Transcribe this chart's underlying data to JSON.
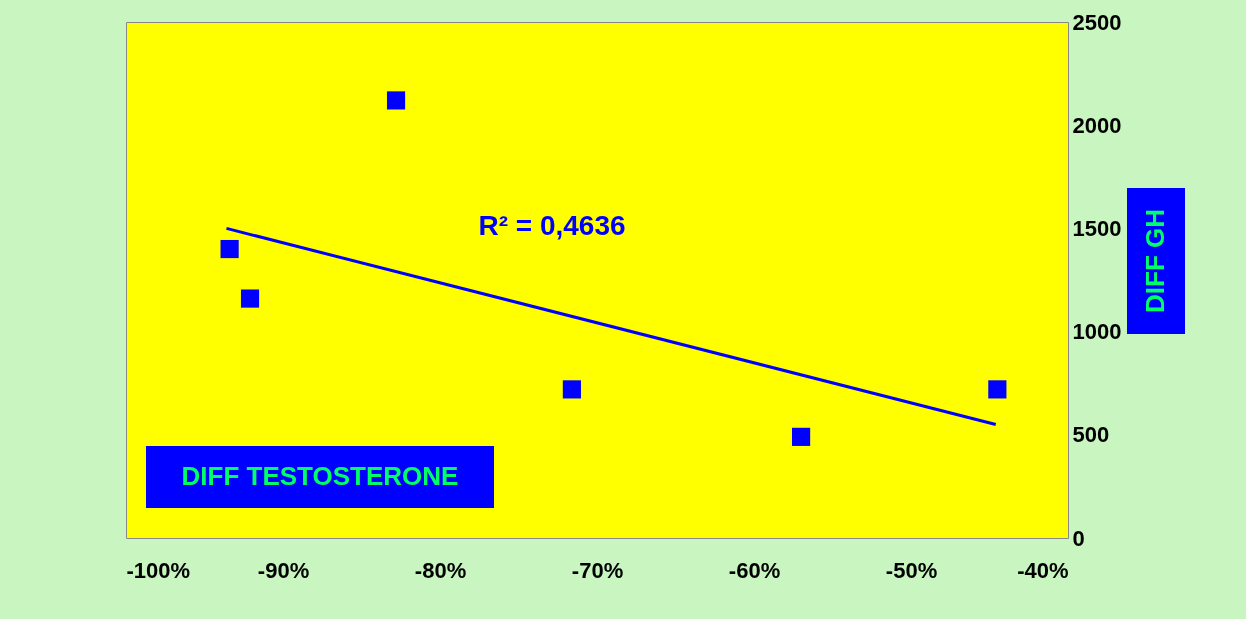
{
  "chart_data": {
    "type": "scatter",
    "xlabel": "DIFF TESTOSTERONE",
    "ylabel": "DIFF GH",
    "annotations": [
      "R² = 0,4636"
    ],
    "series": [
      {
        "color": "#0000ff",
        "x": [
          -93.4,
          -92.1,
          -82.8,
          -71.6,
          -57.0,
          -44.5
        ],
        "values": [
          1400,
          1160,
          2120,
          720,
          490,
          720
        ]
      },
      {
        "type": "line",
        "marker": "none",
        "color": "#0000ff",
        "x": [
          -93.6,
          -44.6
        ],
        "values": [
          1500,
          550
        ]
      }
    ],
    "xlim": [
      -100,
      -40
    ],
    "xticks": [
      {
        "value": -100,
        "label": "-100%"
      },
      {
        "value": -90,
        "label": "-90%"
      },
      {
        "value": -80,
        "label": "-80%"
      },
      {
        "value": -70,
        "label": "-70%"
      },
      {
        "value": -60,
        "label": "-60%"
      },
      {
        "value": -50,
        "label": "-50%"
      },
      {
        "value": -40,
        "label": "-40%"
      }
    ],
    "ylim": [
      0,
      2500
    ],
    "yticks": [
      0,
      500,
      1000,
      1500,
      2000,
      2500
    ],
    "marker": "square",
    "grid": false
  }
}
